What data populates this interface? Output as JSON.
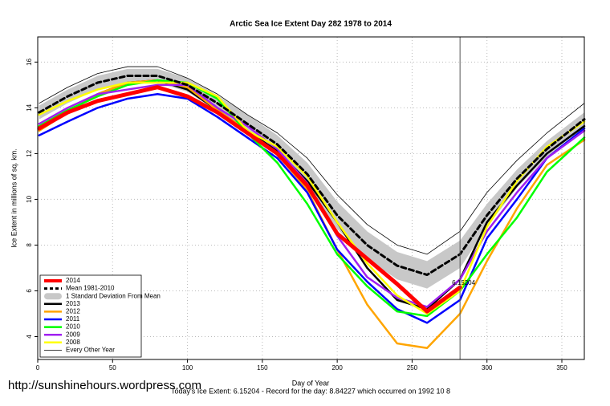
{
  "chart_data": {
    "type": "line",
    "title": "Arctic Sea Ice Extent Day 282 1978 to 2014",
    "x_label": "Day of Year",
    "y_label": "Ice Extent in millions of sq. km.",
    "footer": "Today's Ice Extent: 6.15204 - Record for the day: 8.84227 which occurred on 1992 10 8",
    "watermark": "http://sunshinehours.wordpress.com",
    "annotation": {
      "text": "6.15204",
      "x": 282,
      "y": 6.15204,
      "color": "#ff0000"
    },
    "vline": 282,
    "xlim": [
      0,
      365
    ],
    "ylim": [
      3,
      17.1
    ],
    "xticks": [
      0,
      50,
      100,
      150,
      200,
      250,
      300,
      350
    ],
    "yticks": [
      4,
      6,
      8,
      10,
      12,
      14,
      16
    ],
    "grid": true,
    "legend": "bottom-left",
    "x": [
      1,
      20,
      40,
      60,
      80,
      100,
      120,
      140,
      160,
      180,
      200,
      220,
      240,
      260,
      282,
      300,
      320,
      340,
      365
    ],
    "series": [
      {
        "name": "2014",
        "color": "#ff0000",
        "style": "thick",
        "values": [
          13.1,
          13.8,
          14.3,
          14.6,
          14.9,
          14.5,
          13.8,
          12.9,
          12.0,
          10.6,
          8.5,
          7.4,
          6.3,
          5.1,
          6.15,
          null,
          null,
          null,
          null
        ]
      },
      {
        "name": "Mean 1981-2010",
        "color": "#000000",
        "style": "dashed",
        "values": [
          13.8,
          14.5,
          15.1,
          15.4,
          15.4,
          15.0,
          14.2,
          13.3,
          12.4,
          11.1,
          9.3,
          8.0,
          7.1,
          6.7,
          7.6,
          9.3,
          10.9,
          12.2,
          13.5
        ]
      },
      {
        "name": "1 Standard Deviation From Mean",
        "color": "#c8c8c8",
        "style": "band",
        "values": [
          0.3,
          0.3,
          0.3,
          0.3,
          0.3,
          0.3,
          0.35,
          0.4,
          0.4,
          0.5,
          0.6,
          0.6,
          0.6,
          0.6,
          0.6,
          0.5,
          0.4,
          0.35,
          0.3
        ]
      },
      {
        "name": "2013",
        "color": "#000000",
        "style": "medium",
        "values": [
          13.1,
          13.8,
          14.6,
          15.1,
          15.2,
          14.8,
          13.9,
          13.0,
          12.1,
          10.8,
          9.0,
          7.0,
          5.6,
          5.2,
          6.5,
          9.0,
          10.6,
          12.0,
          13.2
        ]
      },
      {
        "name": "2012",
        "color": "#ffa500",
        "style": "medium",
        "values": [
          13.0,
          13.8,
          14.6,
          15.1,
          15.2,
          14.9,
          13.9,
          13.0,
          12.0,
          10.4,
          7.8,
          5.4,
          3.7,
          3.5,
          5.0,
          7.3,
          9.6,
          11.5,
          12.6
        ]
      },
      {
        "name": "2011",
        "color": "#0000ff",
        "style": "medium",
        "values": [
          12.8,
          13.4,
          14.0,
          14.4,
          14.6,
          14.4,
          13.6,
          12.7,
          11.8,
          10.3,
          7.8,
          6.4,
          5.2,
          4.6,
          5.6,
          8.3,
          10.0,
          11.8,
          13.1
        ]
      },
      {
        "name": "2010",
        "color": "#00ff00",
        "style": "medium",
        "values": [
          13.2,
          13.9,
          14.5,
          15.0,
          15.2,
          15.1,
          14.4,
          12.9,
          11.6,
          9.8,
          7.6,
          6.2,
          5.1,
          4.9,
          6.0,
          7.6,
          9.2,
          11.2,
          12.7
        ]
      },
      {
        "name": "2009",
        "color": "#a020f0",
        "style": "medium",
        "values": [
          13.3,
          14.0,
          14.6,
          14.8,
          15.0,
          15.0,
          14.0,
          13.2,
          12.2,
          10.7,
          8.4,
          6.6,
          5.7,
          5.3,
          6.5,
          8.6,
          10.3,
          11.8,
          13.0
        ]
      },
      {
        "name": "2008",
        "color": "#ffff00",
        "style": "medium",
        "values": [
          13.7,
          14.3,
          14.8,
          15.1,
          15.1,
          15.1,
          14.5,
          13.0,
          12.3,
          11.0,
          9.0,
          7.2,
          5.8,
          5.0,
          6.0,
          8.8,
          10.8,
          12.3,
          13.4
        ]
      },
      {
        "name": "Every Other Year",
        "color": "#000000",
        "style": "thin",
        "values": [
          14.2,
          14.9,
          15.5,
          15.8,
          15.8,
          15.3,
          14.6,
          13.7,
          12.9,
          11.8,
          10.2,
          8.9,
          8.0,
          7.6,
          8.6,
          10.3,
          11.7,
          12.9,
          14.2
        ]
      }
    ]
  }
}
